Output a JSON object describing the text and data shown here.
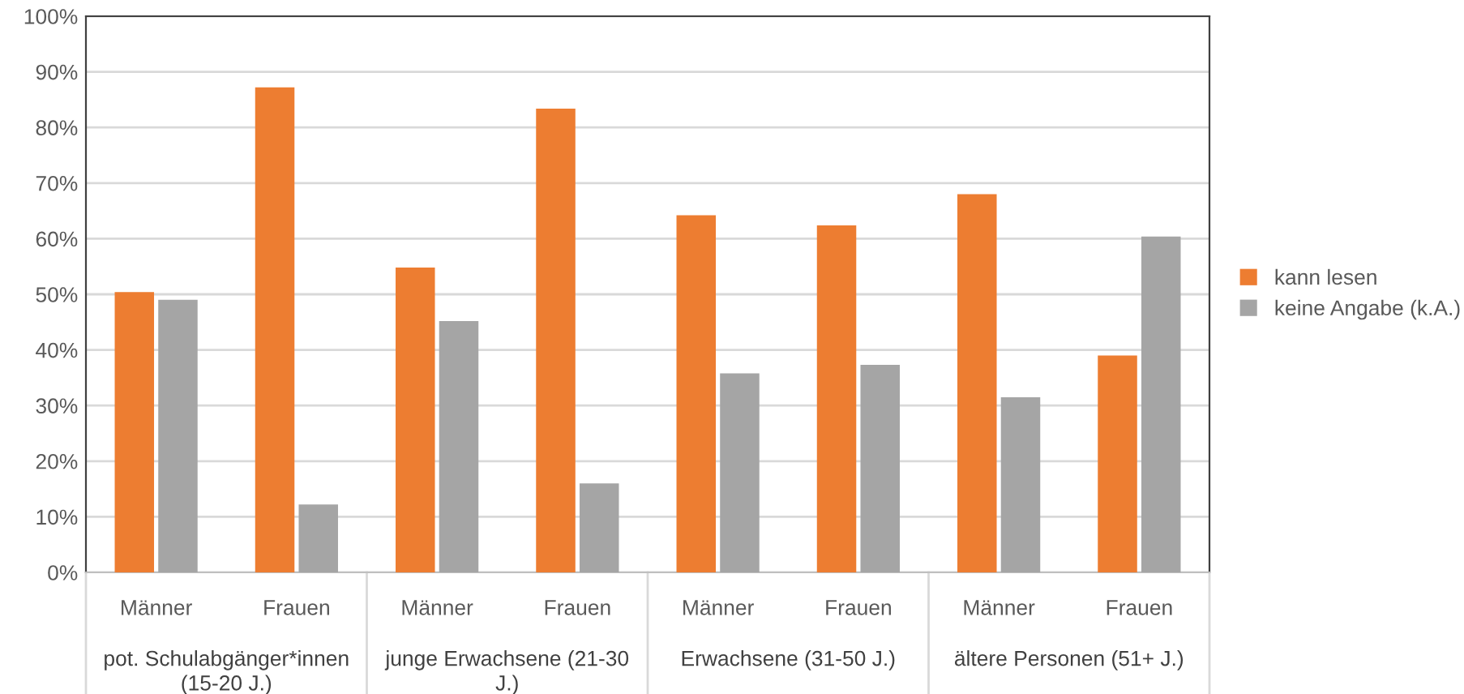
{
  "chart_data": {
    "type": "bar",
    "categories": [
      "Männer",
      "Frauen",
      "Männer",
      "Frauen",
      "Männer",
      "Frauen",
      "Männer",
      "Frauen"
    ],
    "series": [
      {
        "name": "kann lesen",
        "color": "#ed7d31",
        "values": [
          50.4,
          87.2,
          54.8,
          83.4,
          64.2,
          62.4,
          68.0,
          39.0
        ]
      },
      {
        "name": "keine Angabe (k.A.)",
        "color": "#a5a5a5",
        "values": [
          49.0,
          12.2,
          45.2,
          16.0,
          35.8,
          37.3,
          31.5,
          60.4
        ]
      }
    ],
    "annotations": [
      "pot. Schulabgänger*innen (15-20 J.)",
      "junge Erwachsene (21-30 J.)",
      "Erwachsene (31-50 J.)",
      "ältere Personen (51+ J.)"
    ],
    "ylim": [
      0,
      100
    ],
    "yticks": [
      {
        "value": 0,
        "label": "0%"
      },
      {
        "value": 10,
        "label": "10%"
      },
      {
        "value": 20,
        "label": "20%"
      },
      {
        "value": 30,
        "label": "30%"
      },
      {
        "value": 40,
        "label": "40%"
      },
      {
        "value": 50,
        "label": "50%"
      },
      {
        "value": 60,
        "label": "60%"
      },
      {
        "value": 70,
        "label": "70%"
      },
      {
        "value": 80,
        "label": "80%"
      },
      {
        "value": 90,
        "label": "90%"
      },
      {
        "value": 100,
        "label": "100%"
      }
    ],
    "grid": "y",
    "legend": "right"
  }
}
